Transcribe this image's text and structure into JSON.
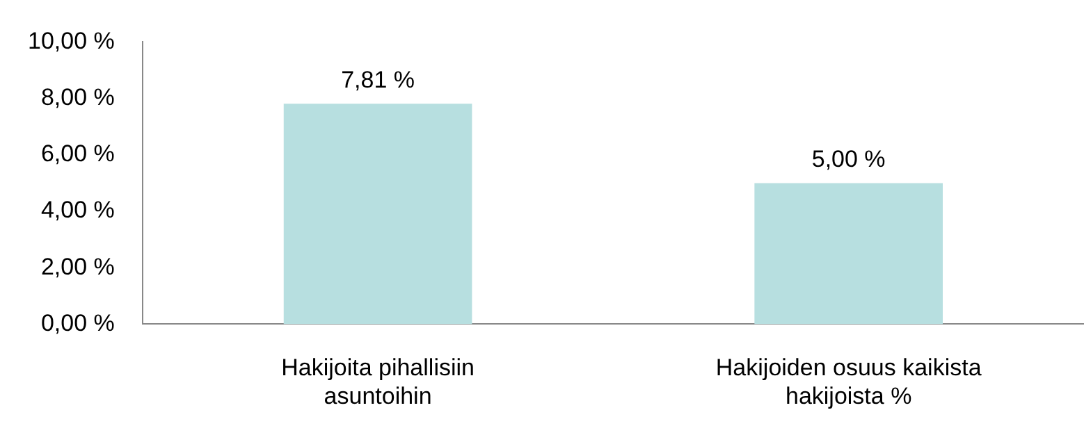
{
  "chart_data": {
    "type": "bar",
    "categories": [
      "Hakijoita pihallisiin asuntoihin",
      "Hakijoiden osuus kaikista hakijoista %"
    ],
    "values": [
      7.81,
      5.0
    ],
    "color": "#b7dfe0",
    "value_labels": [
      "7,81 %",
      "5,00 %"
    ],
    "ylim": [
      0,
      10
    ],
    "yticks": [
      {
        "value": 0,
        "label": "0,00 %"
      },
      {
        "value": 2,
        "label": "2,00 %"
      },
      {
        "value": 4,
        "label": "4,00 %"
      },
      {
        "value": 6,
        "label": "6,00 %"
      },
      {
        "value": 8,
        "label": "8,00 %"
      },
      {
        "value": 10,
        "label": "10,00 %"
      }
    ],
    "grid": false,
    "legend": false
  }
}
